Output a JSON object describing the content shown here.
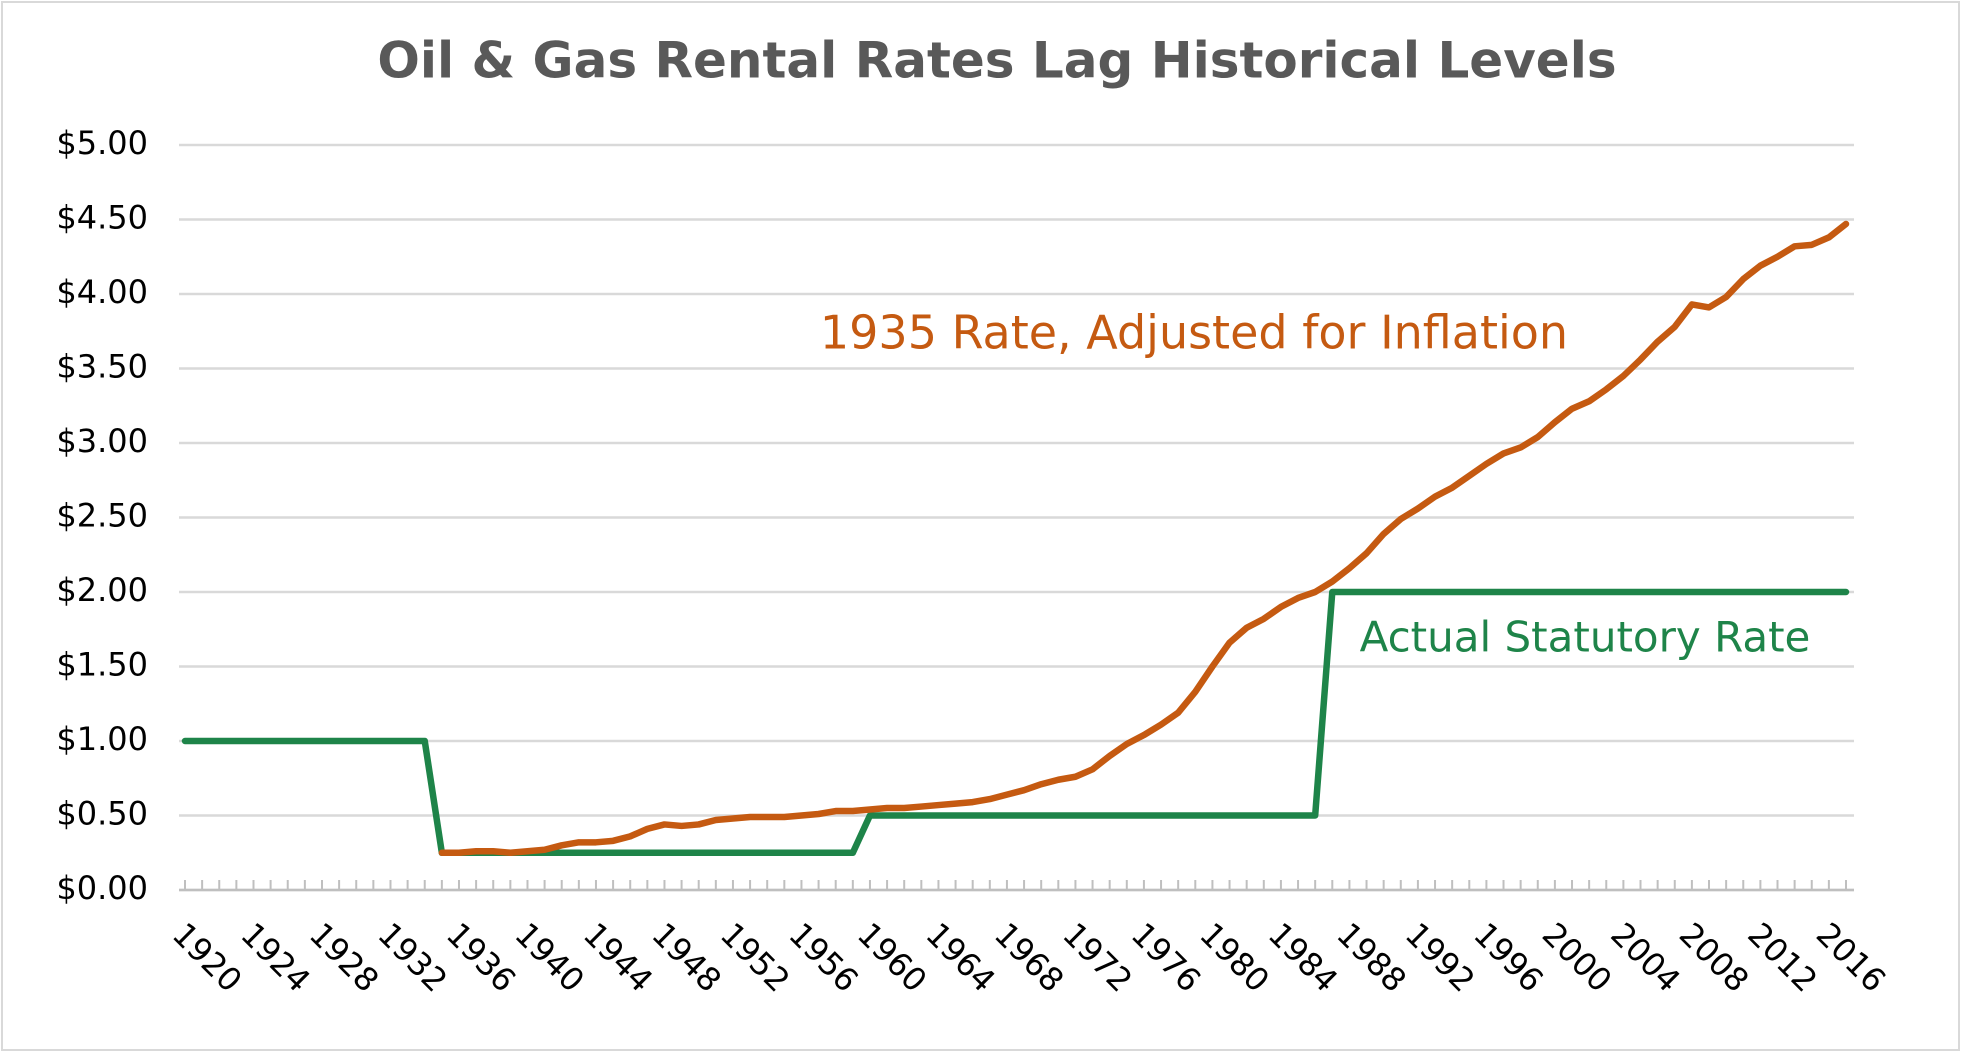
{
  "chart_data": {
    "type": "line",
    "title": "Oil & Gas Rental Rates Lag Historical Levels",
    "x": [
      1920,
      1921,
      1922,
      1923,
      1924,
      1925,
      1926,
      1927,
      1928,
      1929,
      1930,
      1931,
      1932,
      1933,
      1934,
      1935,
      1936,
      1937,
      1938,
      1939,
      1940,
      1941,
      1942,
      1943,
      1944,
      1945,
      1946,
      1947,
      1948,
      1949,
      1950,
      1951,
      1952,
      1953,
      1954,
      1955,
      1956,
      1957,
      1958,
      1959,
      1960,
      1961,
      1962,
      1963,
      1964,
      1965,
      1966,
      1967,
      1968,
      1969,
      1970,
      1971,
      1972,
      1973,
      1974,
      1975,
      1976,
      1977,
      1978,
      1979,
      1980,
      1981,
      1982,
      1983,
      1984,
      1985,
      1986,
      1987,
      1988,
      1989,
      1990,
      1991,
      1992,
      1993,
      1994,
      1995,
      1996,
      1997,
      1998,
      1999,
      2000,
      2001,
      2002,
      2003,
      2004,
      2005,
      2006,
      2007,
      2008,
      2009,
      2010,
      2011,
      2012,
      2013,
      2014,
      2015,
      2016,
      2017
    ],
    "series": [
      {
        "name": "1935 Rate, Adjusted for Inflation",
        "color": "#c55a11",
        "values": [
          null,
          null,
          null,
          null,
          null,
          null,
          null,
          null,
          null,
          null,
          null,
          null,
          null,
          null,
          null,
          0.25,
          0.25,
          0.26,
          0.26,
          0.25,
          0.26,
          0.27,
          0.3,
          0.32,
          0.32,
          0.33,
          0.36,
          0.41,
          0.44,
          0.43,
          0.44,
          0.47,
          0.48,
          0.49,
          0.49,
          0.49,
          0.5,
          0.51,
          0.53,
          0.53,
          0.54,
          0.55,
          0.55,
          0.56,
          0.57,
          0.58,
          0.59,
          0.61,
          0.64,
          0.67,
          0.71,
          0.74,
          0.76,
          0.81,
          0.9,
          0.98,
          1.04,
          1.11,
          1.19,
          1.33,
          1.5,
          1.66,
          1.76,
          1.82,
          1.9,
          1.96,
          2.0,
          2.07,
          2.16,
          2.26,
          2.39,
          2.49,
          2.56,
          2.64,
          2.7,
          2.78,
          2.86,
          2.93,
          2.97,
          3.04,
          3.14,
          3.23,
          3.28,
          3.36,
          3.45,
          3.56,
          3.68,
          3.78,
          3.93,
          3.91,
          3.98,
          4.1,
          4.19,
          4.25,
          4.32,
          4.33,
          4.38,
          4.47
        ]
      },
      {
        "name": "Actual Statutory Rate",
        "color": "#1e8449",
        "values": [
          1,
          1,
          1,
          1,
          1,
          1,
          1,
          1,
          1,
          1,
          1,
          1,
          1,
          1,
          1,
          0.25,
          0.25,
          0.25,
          0.25,
          0.25,
          0.25,
          0.25,
          0.25,
          0.25,
          0.25,
          0.25,
          0.25,
          0.25,
          0.25,
          0.25,
          0.25,
          0.25,
          0.25,
          0.25,
          0.25,
          0.25,
          0.25,
          0.25,
          0.25,
          0.25,
          0.5,
          0.5,
          0.5,
          0.5,
          0.5,
          0.5,
          0.5,
          0.5,
          0.5,
          0.5,
          0.5,
          0.5,
          0.5,
          0.5,
          0.5,
          0.5,
          0.5,
          0.5,
          0.5,
          0.5,
          0.5,
          0.5,
          0.5,
          0.5,
          0.5,
          0.5,
          0.5,
          2,
          2,
          2,
          2,
          2,
          2,
          2,
          2,
          2,
          2,
          2,
          2,
          2,
          2,
          2,
          2,
          2,
          2,
          2,
          2,
          2,
          2,
          2,
          2,
          2,
          2,
          2,
          2,
          2,
          2,
          2
        ]
      }
    ],
    "xlim": [
      1920,
      2017
    ],
    "xticks": [
      1920,
      1924,
      1928,
      1932,
      1936,
      1940,
      1944,
      1948,
      1952,
      1956,
      1960,
      1964,
      1968,
      1972,
      1976,
      1980,
      1984,
      1988,
      1992,
      1996,
      2000,
      2004,
      2008,
      2012,
      2016
    ],
    "ylim": [
      0,
      5
    ],
    "yticks": [
      {
        "value": 0,
        "label": "$0.00"
      },
      {
        "value": 0.5,
        "label": "$0.50"
      },
      {
        "value": 1,
        "label": "$1.00"
      },
      {
        "value": 1.5,
        "label": "$1.50"
      },
      {
        "value": 2,
        "label": "$2.00"
      },
      {
        "value": 2.5,
        "label": "$2.50"
      },
      {
        "value": 3,
        "label": "$3.00"
      },
      {
        "value": 3.5,
        "label": "$3.50"
      },
      {
        "value": 4,
        "label": "$4.00"
      },
      {
        "value": 4.5,
        "label": "$4.50"
      },
      {
        "value": 5,
        "label": "$5.00"
      }
    ],
    "grid": true
  }
}
